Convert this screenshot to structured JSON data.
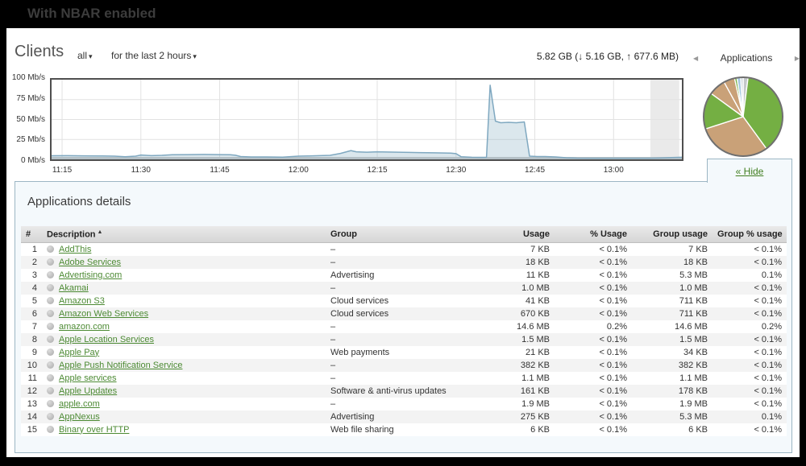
{
  "slide": {
    "title": "With NBAR enabled"
  },
  "icons": {
    "caret_down": "▾",
    "arrow_left": "◀",
    "arrow_right": "▶",
    "sort_asc": "▲"
  },
  "header": {
    "title": "Clients",
    "scope_dropdown": "all",
    "time_dropdown": "for the last 2 hours",
    "usage_summary": "5.82 GB (↓ 5.16 GB, ↑ 677.6 MB)"
  },
  "sidebar": {
    "title": "Applications",
    "hide_label": "« Hide"
  },
  "chart_data": [
    {
      "type": "area",
      "title": "Client usage for the last 2 hours",
      "unit": "Mb/s",
      "ylim": [
        0,
        100
      ],
      "y_ticks": [
        100,
        75,
        50,
        25,
        0
      ],
      "y_tick_labels": [
        "100 Mb/s",
        "75 Mb/s",
        "50 Mb/s",
        "25 Mb/s",
        "0 Mb/s"
      ],
      "x_tick_labels": [
        "11:15",
        "11:30",
        "11:45",
        "12:00",
        "12:15",
        "12:30",
        "12:45",
        "13:00"
      ],
      "x_tick_minutes": [
        15,
        30,
        45,
        60,
        75,
        90,
        105,
        120
      ],
      "x_range_minutes": [
        13,
        133
      ],
      "partial_band_minutes": [
        127,
        132.5
      ],
      "points": [
        [
          13,
          4.5
        ],
        [
          16,
          4.6
        ],
        [
          19,
          4.4
        ],
        [
          22,
          4.3
        ],
        [
          25,
          4.0
        ],
        [
          27,
          3.2
        ],
        [
          29,
          4.0
        ],
        [
          30,
          5.5
        ],
        [
          32,
          4.6
        ],
        [
          34,
          5.0
        ],
        [
          36,
          5.8
        ],
        [
          39,
          6.0
        ],
        [
          42,
          6.2
        ],
        [
          45,
          6.0
        ],
        [
          47,
          5.8
        ],
        [
          48,
          5.2
        ],
        [
          49,
          3.5
        ],
        [
          51,
          3.0
        ],
        [
          54,
          3.0
        ],
        [
          57,
          2.8
        ],
        [
          60,
          4.0
        ],
        [
          62,
          4.3
        ],
        [
          64,
          4.6
        ],
        [
          66,
          5.0
        ],
        [
          68,
          7.5
        ],
        [
          70,
          11.0
        ],
        [
          71,
          9.5
        ],
        [
          73,
          9.0
        ],
        [
          75,
          9.5
        ],
        [
          77,
          9.2
        ],
        [
          80,
          8.8
        ],
        [
          83,
          8.5
        ],
        [
          86,
          8.2
        ],
        [
          89,
          7.8
        ],
        [
          90,
          7.2
        ],
        [
          91,
          3.2
        ],
        [
          93,
          2.6
        ],
        [
          95,
          2.5
        ],
        [
          95.8,
          2.6
        ],
        [
          96.5,
          93
        ],
        [
          97.5,
          48
        ],
        [
          98.5,
          46
        ],
        [
          100,
          46.5
        ],
        [
          101.5,
          46
        ],
        [
          103,
          47
        ],
        [
          104,
          4.0
        ],
        [
          105.5,
          3.5
        ],
        [
          107,
          3.5
        ],
        [
          109,
          3.0
        ],
        [
          111,
          2.0
        ],
        [
          113,
          1.6
        ],
        [
          116,
          1.5
        ],
        [
          120,
          1.5
        ],
        [
          124,
          1.5
        ],
        [
          127,
          1.5
        ],
        [
          129,
          1.8
        ],
        [
          131,
          2.2
        ],
        [
          133,
          2.6
        ]
      ],
      "colors": {
        "line": "#7fa8c0",
        "fill": "rgba(127,168,192,0.28)",
        "grid": "#e2e2e2",
        "band": "#eaeaea",
        "baseline": "#c9c9c9"
      }
    },
    {
      "type": "pie",
      "title": "Applications",
      "slices": [
        {
          "color": "#c4c8ca",
          "pct": 2
        },
        {
          "color": "#74af43",
          "pct": 38
        },
        {
          "color": "#c9a178",
          "pct": 30
        },
        {
          "color": "#74af43",
          "pct": 15
        },
        {
          "color": "#c9a178",
          "pct": 7
        },
        {
          "color": "#c9a178",
          "pct": 4.5
        },
        {
          "color": "#74af43",
          "pct": 1
        },
        {
          "color": "#a5c8e0",
          "pct": 1.5
        },
        {
          "color": "#ccd6dd",
          "pct": 1
        }
      ],
      "outline_color": "#6f6f6f"
    }
  ],
  "table": {
    "title": "Applications details",
    "columns": [
      "#",
      "Description",
      "Group",
      "Usage",
      "% Usage",
      "Group usage",
      "Group % usage"
    ],
    "rows": [
      {
        "num": "1",
        "description": "AddThis",
        "group": "–",
        "usage": "7 KB",
        "pct_usage": "< 0.1%",
        "group_usage": "7 KB",
        "group_pct_usage": "< 0.1%"
      },
      {
        "num": "2",
        "description": "Adobe Services",
        "group": "–",
        "usage": "18 KB",
        "pct_usage": "< 0.1%",
        "group_usage": "18 KB",
        "group_pct_usage": "< 0.1%"
      },
      {
        "num": "3",
        "description": "Advertising.com",
        "group": "Advertising",
        "usage": "11 KB",
        "pct_usage": "< 0.1%",
        "group_usage": "5.3 MB",
        "group_pct_usage": "0.1%"
      },
      {
        "num": "4",
        "description": "Akamai",
        "group": "–",
        "usage": "1.0 MB",
        "pct_usage": "< 0.1%",
        "group_usage": "1.0 MB",
        "group_pct_usage": "< 0.1%"
      },
      {
        "num": "5",
        "description": "Amazon S3",
        "group": "Cloud services",
        "usage": "41 KB",
        "pct_usage": "< 0.1%",
        "group_usage": "711 KB",
        "group_pct_usage": "< 0.1%"
      },
      {
        "num": "6",
        "description": "Amazon Web Services",
        "group": "Cloud services",
        "usage": "670 KB",
        "pct_usage": "< 0.1%",
        "group_usage": "711 KB",
        "group_pct_usage": "< 0.1%"
      },
      {
        "num": "7",
        "description": "amazon.com",
        "group": "–",
        "usage": "14.6 MB",
        "pct_usage": "0.2%",
        "group_usage": "14.6 MB",
        "group_pct_usage": "0.2%"
      },
      {
        "num": "8",
        "description": "Apple Location Services",
        "group": "–",
        "usage": "1.5 MB",
        "pct_usage": "< 0.1%",
        "group_usage": "1.5 MB",
        "group_pct_usage": "< 0.1%"
      },
      {
        "num": "9",
        "description": "Apple Pay",
        "group": "Web payments",
        "usage": "21 KB",
        "pct_usage": "< 0.1%",
        "group_usage": "34 KB",
        "group_pct_usage": "< 0.1%"
      },
      {
        "num": "10",
        "description": "Apple Push Notification Service",
        "group": "–",
        "usage": "382 KB",
        "pct_usage": "< 0.1%",
        "group_usage": "382 KB",
        "group_pct_usage": "< 0.1%"
      },
      {
        "num": "11",
        "description": "Apple services",
        "group": "–",
        "usage": "1.1 MB",
        "pct_usage": "< 0.1%",
        "group_usage": "1.1 MB",
        "group_pct_usage": "< 0.1%"
      },
      {
        "num": "12",
        "description": "Apple Updates",
        "group": "Software & anti-virus updates",
        "usage": "161 KB",
        "pct_usage": "< 0.1%",
        "group_usage": "178 KB",
        "group_pct_usage": "< 0.1%"
      },
      {
        "num": "13",
        "description": "apple.com",
        "group": "–",
        "usage": "1.9 MB",
        "pct_usage": "< 0.1%",
        "group_usage": "1.9 MB",
        "group_pct_usage": "< 0.1%"
      },
      {
        "num": "14",
        "description": "AppNexus",
        "group": "Advertising",
        "usage": "275 KB",
        "pct_usage": "< 0.1%",
        "group_usage": "5.3 MB",
        "group_pct_usage": "0.1%"
      },
      {
        "num": "15",
        "description": "Binary over HTTP",
        "group": "Web file sharing",
        "usage": "6 KB",
        "pct_usage": "< 0.1%",
        "group_usage": "6 KB",
        "group_pct_usage": "< 0.1%"
      }
    ]
  }
}
